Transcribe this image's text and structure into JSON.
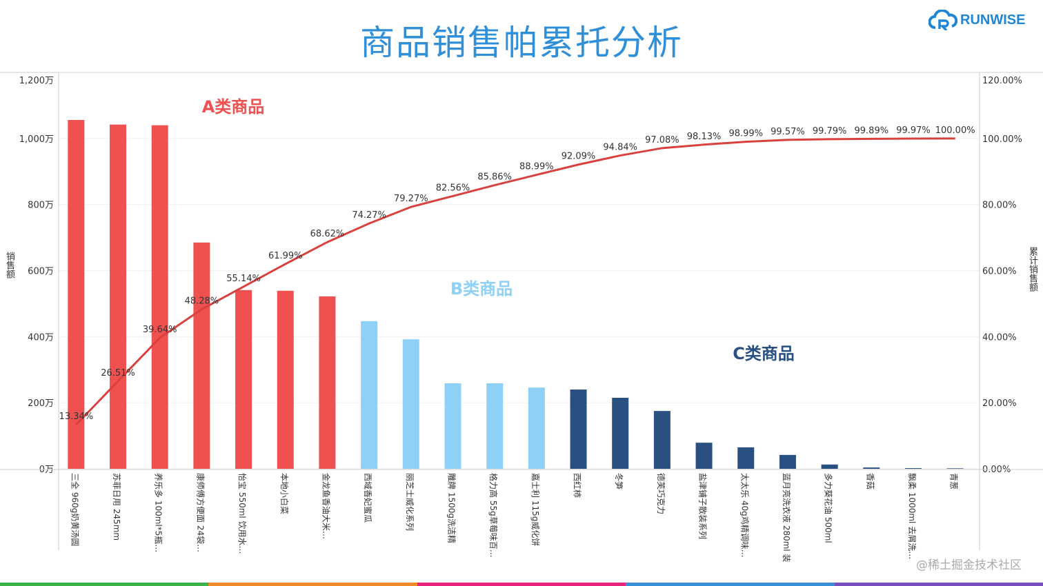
{
  "header": {
    "title": "商品销售帕累托分析",
    "logo": "RUNWISE"
  },
  "watermark": "@稀土掘金技术社区",
  "colors": {
    "class_a": "#ef5150",
    "class_b": "#8fd0f6",
    "class_c": "#2a5082",
    "line": "#d9413f",
    "title": "#2f8fd8",
    "stripe": [
      "#3cb34a",
      "#f08a2a",
      "#e8257a",
      "#3b8fd6",
      "#7b4fc0"
    ]
  },
  "chart_data": {
    "type": "bar+line",
    "ylabel": "销售额",
    "y2label": "累计销售额",
    "ylim": [
      0,
      1200
    ],
    "y2lim": [
      0,
      120
    ],
    "yticks": [
      "0万",
      "200万",
      "400万",
      "600万",
      "800万",
      "1,000万",
      "1,200万"
    ],
    "y2ticks": [
      "0.00%",
      "20.00%",
      "40.00%",
      "60.00%",
      "80.00%",
      "100.00%",
      "120.00%"
    ],
    "annotations": [
      {
        "text": "A类商品",
        "class": "A"
      },
      {
        "text": "B类商品",
        "class": "B"
      },
      {
        "text": "C类商品",
        "class": "C"
      }
    ],
    "categories": [
      "三全 960g奶黄汤圆",
      "苏菲日用 245mm",
      "养乐多 100ml*5瓶…",
      "康师傅方便面 24袋…",
      "怡宝 550ml 饮用水…",
      "本地小白菜",
      "金龙鱼香油大米…",
      "西域香妃蜜瓜",
      "丽芝士威化系列",
      "雕牌 1500g洗洁精",
      "格力高 55g草莓味百…",
      "嘉士利 115g威化饼",
      "西红柿",
      "冬笋",
      "德芙巧克力",
      "盐津铺子散装系列",
      "太太乐 40g鸡精调味…",
      "蓝月亮洗衣液 280ml 装",
      "多力葵花油 500ml",
      "香菇",
      "飘柔 1000ml 去屑洗…",
      "青葱"
    ],
    "classes": [
      "A",
      "A",
      "A",
      "A",
      "A",
      "A",
      "A",
      "B",
      "B",
      "B",
      "B",
      "B",
      "C",
      "C",
      "C",
      "C",
      "C",
      "C",
      "C",
      "C",
      "C",
      "C"
    ],
    "sales": [
      1056,
      1042,
      1040,
      685,
      541,
      539,
      522,
      447,
      392,
      259,
      259,
      246,
      240,
      215,
      175,
      79,
      65,
      42,
      13,
      4,
      2,
      1.5
    ],
    "cumulative_pct": [
      13.34,
      26.51,
      39.64,
      48.28,
      55.14,
      61.99,
      68.62,
      74.27,
      79.27,
      82.56,
      85.86,
      88.99,
      92.09,
      94.84,
      97.08,
      98.13,
      98.99,
      99.57,
      99.79,
      99.89,
      99.97,
      100.0
    ],
    "cumulative_labels": [
      "13.34%",
      "26.51%",
      "39.64%",
      "48.28%",
      "55.14%",
      "61.99%",
      "68.62%",
      "74.27%",
      "79.27%",
      "82.56%",
      "85.86%",
      "88.99%",
      "92.09%",
      "94.84%",
      "97.08%",
      "98.13%",
      "98.99%",
      "99.57%",
      "99.79%",
      "99.89%",
      "99.97%",
      "100.00%"
    ]
  }
}
